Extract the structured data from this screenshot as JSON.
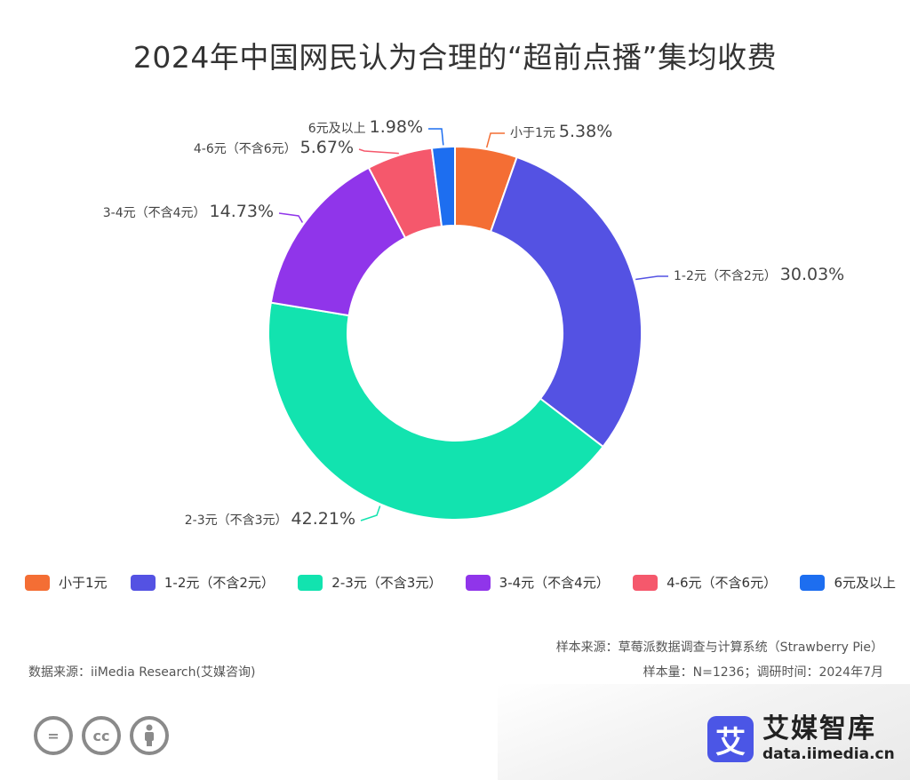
{
  "chart_data": {
    "type": "pie",
    "title": "2024年中国网民认为合理的“超前点播”集均收费",
    "categories": [
      "小于1元",
      "1-2元（不含2元）",
      "2-3元（不含3元）",
      "3-4元（不含4元）",
      "4-6元（不含6元）",
      "6元及以上"
    ],
    "values": [
      5.38,
      30.03,
      42.21,
      14.73,
      5.67,
      1.98
    ],
    "value_labels": [
      "5.38%",
      "30.03%",
      "42.21%",
      "14.73%",
      "5.67%",
      "1.98%"
    ],
    "colors": [
      "#f46e34",
      "#5452e3",
      "#12e3af",
      "#9035ea",
      "#f5586c",
      "#1d6ef0"
    ],
    "legend_placement": "bottom",
    "donut": true
  },
  "source": {
    "sample_source": "样本来源：草莓派数据调查与计算系统（Strawberry Pie）",
    "sample_size": "样本量：N=1236；调研时间：2024年7月",
    "data_source": "数据来源：iiMedia Research(艾媒咨询)"
  },
  "brand": {
    "logo_char": "艾",
    "name": "艾媒智库",
    "url": "data.iimedia.cn"
  },
  "license_icons": {
    "equals": "=",
    "cc": "cc",
    "person": "person-icon"
  }
}
